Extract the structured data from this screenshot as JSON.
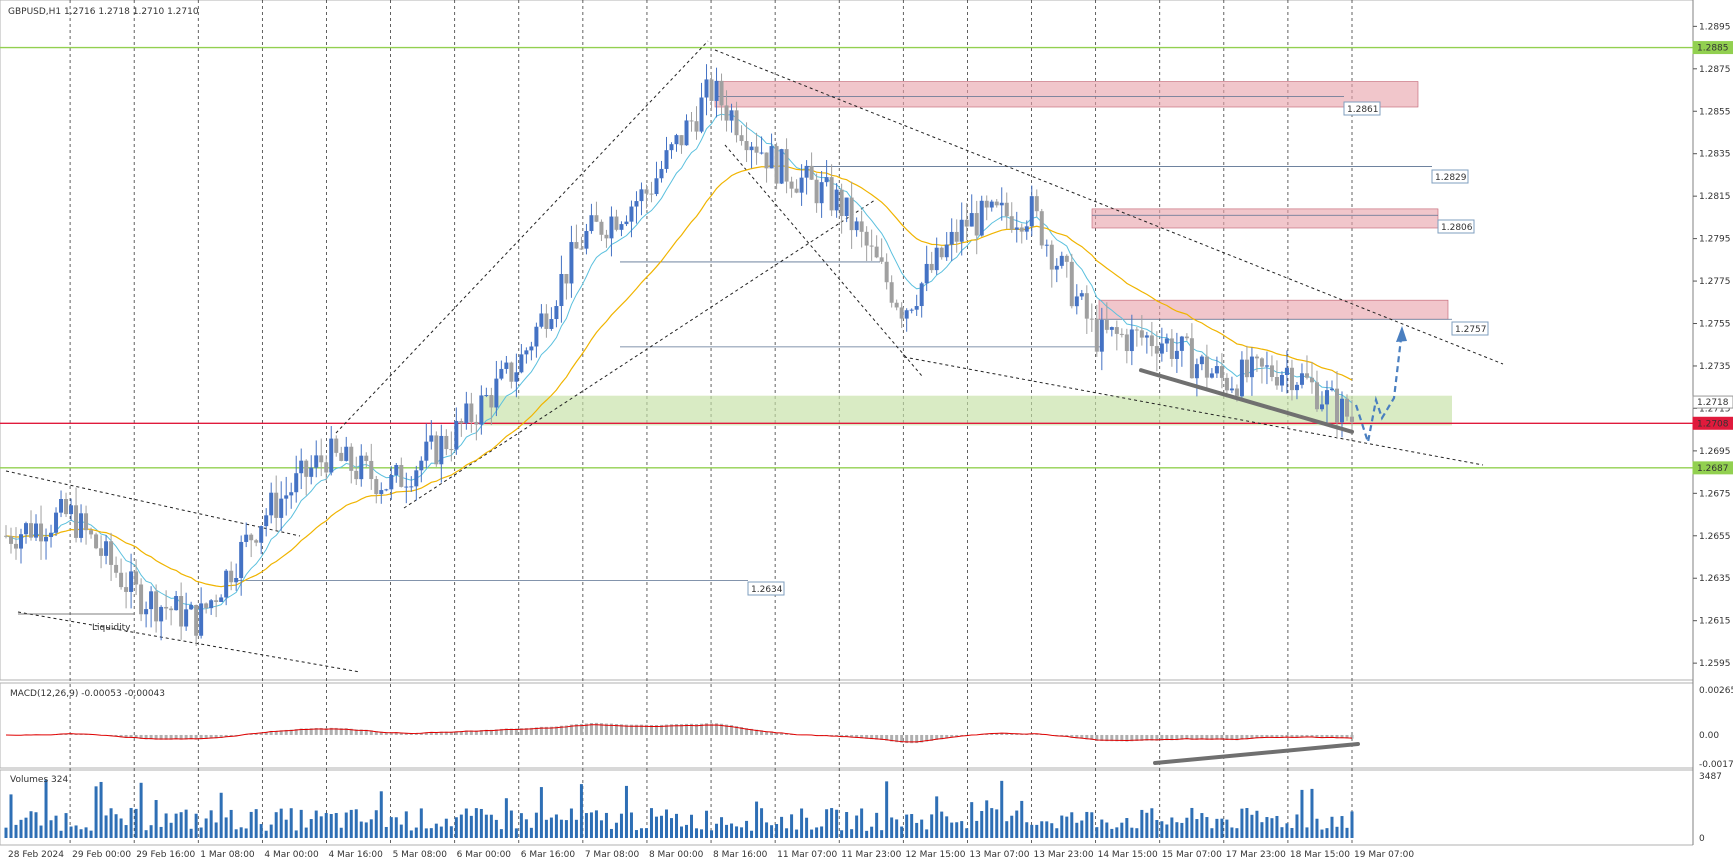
{
  "window": {
    "symbol_header": "GBPUSD,H1  1.2716 1.2718 1.2710 1.2710"
  },
  "colors": {
    "background": "#ffffff",
    "grid": "#3a3a3a",
    "candle_up": "#4472c4",
    "candle_down": "#a0a0a0",
    "ema_fast": "#5bc0de",
    "ema_slow": "#f0b400",
    "resistance_zone": "#e8a0a8",
    "support_zone": "#c5e0a5",
    "green_level": "#92d050",
    "red_level": "#e01a3c",
    "macd_hist": "#b0b0b0",
    "macd_signal": "#e00000",
    "volume_bar": "#2e6fb5",
    "divergence_line": "#707070",
    "projection_arrow": "#4a7fc0"
  },
  "price_axis": {
    "ticks": [
      "1.2895",
      "1.2875",
      "1.2855",
      "1.2835",
      "1.2815",
      "1.2795",
      "1.2775",
      "1.2755",
      "1.2735",
      "1.2715",
      "1.2695",
      "1.2675",
      "1.2655",
      "1.2635",
      "1.2615",
      "1.2595"
    ],
    "highlighted": [
      {
        "value": "1.2885",
        "color": "#92d050"
      },
      {
        "value": "1.2718",
        "color": "#ffffff"
      },
      {
        "value": "1.2708",
        "color": "#e01a3c"
      },
      {
        "value": "1.2687",
        "color": "#92d050"
      }
    ]
  },
  "time_axis": {
    "labels": [
      "28 Feb 2024",
      "29 Feb 00:00",
      "29 Feb 16:00",
      "1 Mar 08:00",
      "4 Mar 00:00",
      "4 Mar 16:00",
      "5 Mar 08:00",
      "6 Mar 00:00",
      "6 Mar 16:00",
      "7 Mar 08:00",
      "8 Mar 00:00",
      "8 Mar 16:00",
      "11 Mar 07:00",
      "11 Mar 23:00",
      "12 Mar 15:00",
      "13 Mar 07:00",
      "13 Mar 23:00",
      "14 Mar 15:00",
      "15 Mar 07:00",
      "17 Mar 23:00",
      "18 Mar 15:00",
      "19 Mar 07:00"
    ]
  },
  "level_labels": {
    "r1": "1.2861",
    "r2": "1.2829",
    "r3": "1.2806",
    "r4": "1.2757",
    "s1": "1.2634"
  },
  "annotation": {
    "liquidity": "Liquidity"
  },
  "macd": {
    "header": "MACD(12,26,9) -0.00053 -0.00043",
    "ticks": [
      "0.00265",
      "0.00",
      "-0.00171"
    ]
  },
  "volumes": {
    "header": "Volumes 324",
    "ticks": [
      "3487",
      "0"
    ]
  },
  "chart_data": {
    "type": "candlestick",
    "title": "GBPUSD,H1",
    "ohlc_last": {
      "open": 1.2716,
      "high": 1.2718,
      "low": 1.271,
      "close": 1.271
    },
    "ylim": [
      1.2588,
      1.2906
    ],
    "key_levels": [
      1.2885,
      1.2861,
      1.2829,
      1.2806,
      1.2757,
      1.2708,
      1.2687,
      1.2634
    ],
    "path_points": [
      {
        "t": "28 Feb 2024",
        "price": 1.2655
      },
      {
        "t": "29 Feb 00:00",
        "price": 1.2665
      },
      {
        "t": "29 Feb 16:00",
        "price": 1.2628
      },
      {
        "t": "1 Mar 08:00",
        "price": 1.2615
      },
      {
        "t": "4 Mar 00:00",
        "price": 1.2664
      },
      {
        "t": "4 Mar 16:00",
        "price": 1.2693
      },
      {
        "t": "5 Mar 08:00",
        "price": 1.2679
      },
      {
        "t": "6 Mar 00:00",
        "price": 1.2703
      },
      {
        "t": "6 Mar 16:00",
        "price": 1.2736
      },
      {
        "t": "7 Mar 08:00",
        "price": 1.2795
      },
      {
        "t": "8 Mar 00:00",
        "price": 1.2817
      },
      {
        "t": "8 Mar 16:00",
        "price": 1.2865
      },
      {
        "t": "11 Mar 07:00",
        "price": 1.283
      },
      {
        "t": "11 Mar 23:00",
        "price": 1.2812
      },
      {
        "t": "12 Mar 15:00",
        "price": 1.2762
      },
      {
        "t": "13 Mar 07:00",
        "price": 1.2803
      },
      {
        "t": "13 Mar 23:00",
        "price": 1.2808
      },
      {
        "t": "14 Mar 15:00",
        "price": 1.2749
      },
      {
        "t": "15 Mar 07:00",
        "price": 1.2748
      },
      {
        "t": "17 Mar 23:00",
        "price": 1.2728
      },
      {
        "t": "18 Mar 15:00",
        "price": 1.2734
      },
      {
        "t": "19 Mar 07:00",
        "price": 1.271
      }
    ],
    "volume_ylim": [
      0,
      3487
    ],
    "macd_ylim": [
      -0.00171,
      0.00265
    ]
  }
}
